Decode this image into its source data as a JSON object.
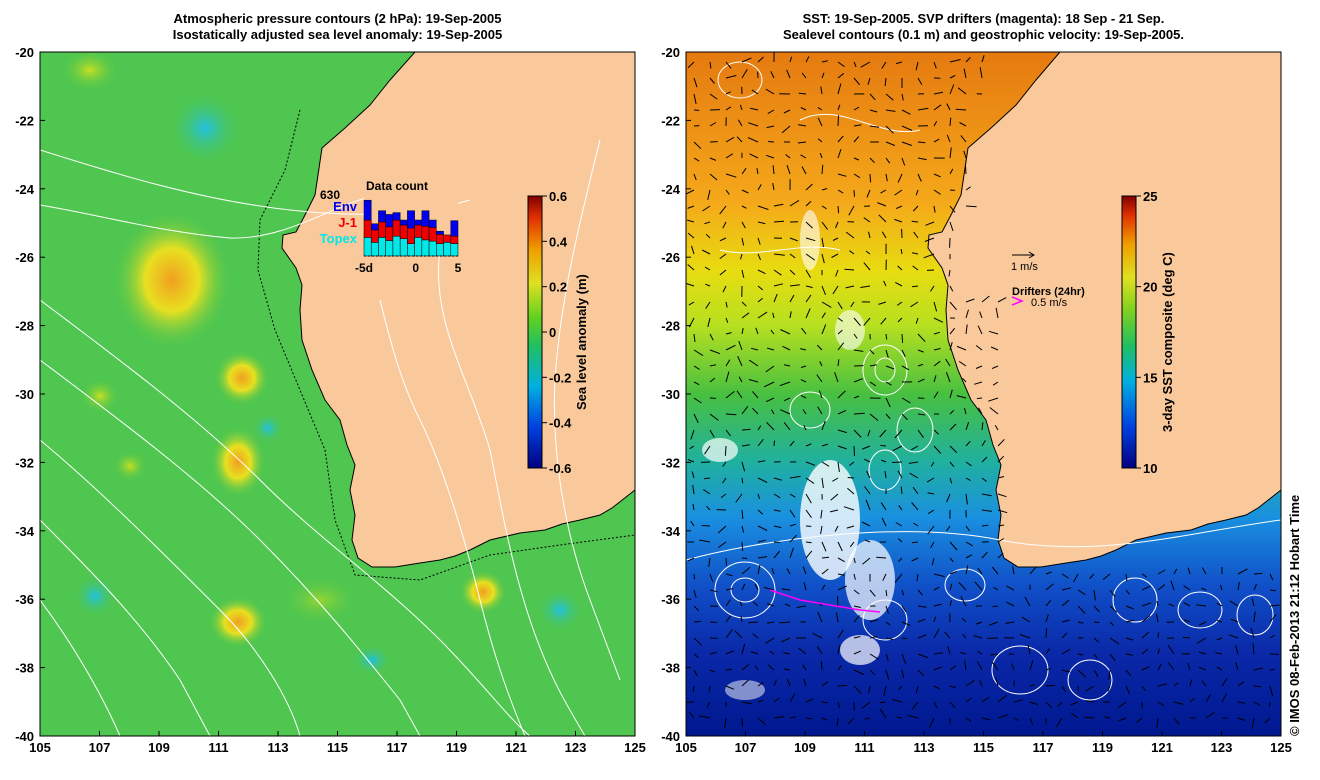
{
  "left_panel": {
    "title_line1": "Atmospheric pressure contours (2 hPa): 19-Sep-2005",
    "title_line2": "Isostatically adjusted sea level anomaly: 19-Sep-2005",
    "colorbar": {
      "label": "Sea level anomaly (m)",
      "ticks": [
        "0.6",
        "0.4",
        "0.2",
        "0",
        "-0.2",
        "-0.4",
        "-0.6"
      ]
    },
    "data_count": {
      "title": "Data count",
      "max_label": "630",
      "legend": [
        {
          "name": "Env",
          "color": "#0000ee"
        },
        {
          "name": "J-1",
          "color": "#ee0000"
        },
        {
          "name": "Topex",
          "color": "#00e8e8"
        }
      ],
      "x_ticks": [
        "-5d",
        "0",
        "5"
      ],
      "bars": [
        {
          "topex": 0.3,
          "j1": 0.28,
          "env": 0.32
        },
        {
          "topex": 0.22,
          "j1": 0.2,
          "env": 0.1
        },
        {
          "topex": 0.3,
          "j1": 0.25,
          "env": 0.18
        },
        {
          "topex": 0.25,
          "j1": 0.22,
          "env": 0.2
        },
        {
          "topex": 0.32,
          "j1": 0.26,
          "env": 0.12
        },
        {
          "topex": 0.28,
          "j1": 0.22,
          "env": 0.08
        },
        {
          "topex": 0.2,
          "j1": 0.25,
          "env": 0.28
        },
        {
          "topex": 0.3,
          "j1": 0.2,
          "env": 0.08
        },
        {
          "topex": 0.26,
          "j1": 0.22,
          "env": 0.25
        },
        {
          "topex": 0.24,
          "j1": 0.22,
          "env": 0.12
        },
        {
          "topex": 0.2,
          "j1": 0.15,
          "env": 0.05
        },
        {
          "topex": 0.22,
          "j1": 0.12,
          "env": 0.0
        },
        {
          "topex": 0.2,
          "j1": 0.12,
          "env": 0.25
        }
      ]
    }
  },
  "right_panel": {
    "title_line1": "SST: 19-Sep-2005. SVP drifters (magenta): 18 Sep - 21 Sep.",
    "title_line2": "Sealevel contours (0.1 m) and geostrophic velocity: 19-Sep-2005.",
    "velocity_scale_label": "1 m/s",
    "drifters_label": "Drifters (24hr)",
    "drifter_speed_label": "0.5 m/s",
    "colorbar": {
      "label": "3-day SST composite (deg C)",
      "ticks": [
        "25",
        "20",
        "15",
        "10"
      ]
    }
  },
  "axes": {
    "longitude_ticks": [
      "105",
      "107",
      "109",
      "111",
      "113",
      "115",
      "117",
      "119",
      "121",
      "123",
      "125"
    ],
    "latitude_ticks": [
      "-20",
      "-22",
      "-24",
      "-26",
      "-28",
      "-30",
      "-32",
      "-34",
      "-36",
      "-38",
      "-40"
    ]
  },
  "credit": "© IMOS 08-Feb-2013 21:12 Hobart Time",
  "colors": {
    "land": "#f9c99c",
    "ocean_base": "#4fc64f",
    "sst_warm": "#f29a10",
    "sst_cold": "#0020a0"
  }
}
